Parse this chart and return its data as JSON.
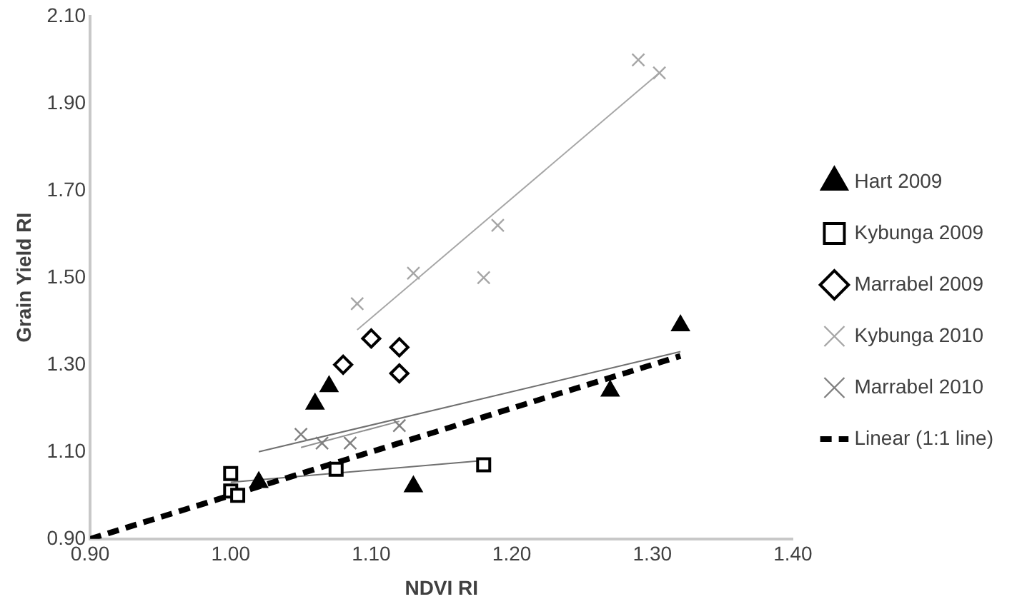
{
  "chart_data": {
    "type": "scatter",
    "xlabel": "NDVI RI",
    "ylabel": "Grain Yield RI",
    "xlim": [
      0.9,
      1.4
    ],
    "ylim": [
      0.9,
      2.1
    ],
    "xticks": [
      {
        "value": 0.9,
        "label": "0.90"
      },
      {
        "value": 1.0,
        "label": "1.00"
      },
      {
        "value": 1.1,
        "label": "1.10"
      },
      {
        "value": 1.2,
        "label": "1.20"
      },
      {
        "value": 1.3,
        "label": "1.30"
      },
      {
        "value": 1.4,
        "label": "1.40"
      }
    ],
    "yticks": [
      {
        "value": 0.9,
        "label": "0.90"
      },
      {
        "value": 1.1,
        "label": "1.10"
      },
      {
        "value": 1.3,
        "label": "1.30"
      },
      {
        "value": 1.5,
        "label": "1.50"
      },
      {
        "value": 1.7,
        "label": "1.70"
      },
      {
        "value": 1.9,
        "label": "1.90"
      },
      {
        "value": 2.1,
        "label": "2.10"
      }
    ],
    "grid": false,
    "legend": "right",
    "series": [
      {
        "name": "Hart 2009",
        "color": "#000000",
        "marker": "triangle",
        "x": [
          1.02,
          1.06,
          1.07,
          1.13,
          1.27,
          1.32
        ],
        "values": [
          1.03,
          1.21,
          1.25,
          1.02,
          1.24,
          1.39
        ]
      },
      {
        "name": "Kybunga 2009",
        "color": "#000000",
        "marker": "square",
        "x": [
          1.0,
          1.0,
          1.005,
          1.075,
          1.18
        ],
        "values": [
          1.05,
          1.01,
          1.0,
          1.06,
          1.07
        ]
      },
      {
        "name": "Marrabel 2009",
        "color": "#000000",
        "marker": "diamond",
        "x": [
          1.08,
          1.1,
          1.12,
          1.12
        ],
        "values": [
          1.3,
          1.36,
          1.34,
          1.28
        ]
      },
      {
        "name": "Kybunga 2010",
        "color": "#a6a6a6",
        "marker": "cross",
        "x": [
          1.09,
          1.13,
          1.18,
          1.19,
          1.29,
          1.305
        ],
        "values": [
          1.44,
          1.51,
          1.5,
          1.62,
          2.0,
          1.97
        ]
      },
      {
        "name": "Marrabel 2010",
        "color": "#808080",
        "marker": "cross",
        "x": [
          1.05,
          1.065,
          1.085,
          1.12
        ],
        "values": [
          1.14,
          1.12,
          1.12,
          1.16
        ]
      },
      {
        "name": "Linear (1:1 line)",
        "type": "line",
        "color": "#000000",
        "marker": "none",
        "line_style": "dashed",
        "x": [
          0.9,
          1.32
        ],
        "values": [
          0.9,
          1.32
        ]
      },
      {
        "type": "line",
        "color": "#707070",
        "marker": "none",
        "x": [
          1.02,
          1.32
        ],
        "values": [
          1.1,
          1.33
        ]
      },
      {
        "type": "line",
        "color": "#707070",
        "marker": "none",
        "x": [
          1.0,
          1.18
        ],
        "values": [
          1.03,
          1.08
        ]
      },
      {
        "type": "line",
        "color": "#a6a6a6",
        "marker": "none",
        "x": [
          1.09,
          1.305
        ],
        "values": [
          1.38,
          1.97
        ]
      },
      {
        "type": "line",
        "color": "#909090",
        "marker": "none",
        "x": [
          1.05,
          1.12
        ],
        "values": [
          1.11,
          1.17
        ]
      }
    ]
  }
}
